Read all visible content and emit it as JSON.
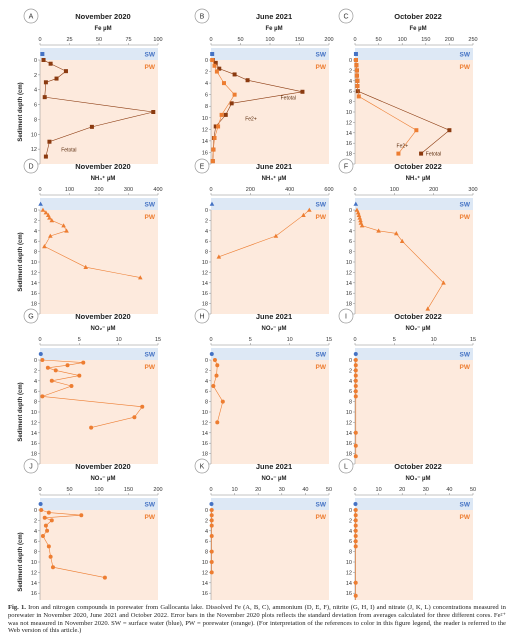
{
  "figure": {
    "caption_label": "Fig. 1.",
    "caption_text": "Iron and nitrogen compounds in porewater from Gallocanta lake. Dissolved Fe (A, B, C), ammonium (D, E, F), nitrite (G, H, I) and nitrate (J, K, L) concentrations measured in porewater in November 2020, June 2021 and October 2022. Error bars in the November 2020 plots reflects the standard deviation from averages calculated for three different cores. Fe²⁺ was not measured in November 2020. SW = surface water (blue), PW = porewater (orange). (For interpretation of the references to color in this figure legend, the reader is referred to the Web version of this article.)"
  },
  "colors": {
    "sw_band": "#dde8f5",
    "pw_band": "#fdeadd",
    "sw_text": "#4472c4",
    "pw_text": "#ed7d31",
    "fe_total": "#8b3a0f",
    "fe2": "#ed7d31",
    "nitrogen": "#ed7d31",
    "sw_point": "#4472c4"
  },
  "chart_data": [
    {
      "id": "A",
      "type": "line",
      "title": "November 2020",
      "xlabel": "Fe µM",
      "ylabel": "Sediment depth (cm)",
      "xlim": [
        0,
        100
      ],
      "xticks": [
        0,
        25,
        50,
        75,
        100
      ],
      "ylim": [
        0,
        14
      ],
      "yticks": [
        0,
        2,
        4,
        6,
        8,
        10,
        12,
        14
      ],
      "band_sw": "SW",
      "band_pw": "PW",
      "sw_point": {
        "x": 2,
        "label": "SW"
      },
      "series": [
        {
          "name": "Fe_total",
          "marker": "square",
          "color_key": "fe_total",
          "x": [
            3,
            9,
            22,
            14,
            5,
            4,
            96,
            44,
            8,
            5
          ],
          "y": [
            0,
            0.5,
            1.5,
            2.5,
            3,
            5,
            7,
            9,
            11,
            13
          ]
        }
      ],
      "annotations": [
        {
          "text": "Fetotal",
          "x": 18,
          "y": 12.3
        }
      ]
    },
    {
      "id": "B",
      "type": "line",
      "title": "June 2021",
      "xlabel": "Fe µM",
      "ylabel": "",
      "xlim": [
        0,
        200
      ],
      "xticks": [
        0,
        50,
        100,
        150,
        200
      ],
      "ylim": [
        0,
        18
      ],
      "yticks": [
        0,
        2,
        4,
        6,
        8,
        10,
        12,
        14,
        16,
        18
      ],
      "band_sw": "SW",
      "band_pw": "PW",
      "sw_point": {
        "x": 2,
        "label": "SW"
      },
      "series": [
        {
          "name": "Fe_total",
          "marker": "square",
          "color_key": "fe_total",
          "x": [
            3,
            8,
            14,
            40,
            62,
            155,
            35,
            25,
            8,
            5,
            4,
            3
          ],
          "y": [
            0,
            0.5,
            1.5,
            2.5,
            3.5,
            5.5,
            7.5,
            9.5,
            11.5,
            13.5,
            15.5,
            17.5
          ]
        },
        {
          "name": "Fe2+",
          "marker": "square",
          "color_key": "fe2",
          "x": [
            2,
            6,
            10,
            22,
            40,
            18,
            12,
            6,
            4,
            3
          ],
          "y": [
            0,
            1,
            2,
            4,
            6,
            9.5,
            11.5,
            13.5,
            15.5,
            17.5
          ]
        }
      ],
      "annotations": [
        {
          "text": "Fetotal",
          "x": 118,
          "y": 6.8
        },
        {
          "text": "Fe2+",
          "x": 58,
          "y": 10.5
        }
      ]
    },
    {
      "id": "C",
      "type": "line",
      "title": "October 2022",
      "xlabel": "Fe µM",
      "ylabel": "",
      "xlim": [
        0,
        250
      ],
      "xticks": [
        0,
        50,
        100,
        150,
        200,
        250
      ],
      "ylim": [
        0,
        20
      ],
      "yticks": [
        0,
        2,
        4,
        6,
        8,
        10,
        12,
        14,
        16,
        18,
        20
      ],
      "band_sw": "SW",
      "band_pw": "PW",
      "sw_point": {
        "x": 2,
        "label": "SW"
      },
      "series": [
        {
          "name": "Fe_total",
          "marker": "square",
          "color_key": "fe_total",
          "x": [
            2,
            3,
            4,
            4,
            5,
            5,
            6,
            200,
            140
          ],
          "y": [
            0,
            1,
            2,
            3,
            4,
            5,
            6,
            13.5,
            18
          ]
        },
        {
          "name": "Fe2+",
          "marker": "square",
          "color_key": "fe2",
          "x": [
            2,
            3,
            4,
            4,
            5,
            5,
            8,
            130,
            92
          ],
          "y": [
            0,
            1,
            2,
            3,
            4,
            5,
            7,
            13.5,
            18
          ]
        }
      ],
      "annotations": [
        {
          "text": "Fe2+",
          "x": 88,
          "y": 16.8
        },
        {
          "text": "Fetotal",
          "x": 150,
          "y": 18.4
        }
      ]
    },
    {
      "id": "D",
      "type": "line",
      "title": "November 2020",
      "xlabel": "NH₄⁺ µM",
      "ylabel": "Sediment depth (cm)",
      "xlim": [
        0,
        400
      ],
      "xticks": [
        0,
        100,
        200,
        300,
        400
      ],
      "ylim": [
        0,
        20
      ],
      "yticks": [
        0,
        2,
        4,
        6,
        8,
        10,
        12,
        14,
        16,
        18,
        20
      ],
      "band_sw": "SW",
      "band_pw": "PW",
      "sw_point": {
        "x": 2,
        "label": "SW"
      },
      "series": [
        {
          "name": "NH4+",
          "marker": "triangle",
          "color_key": "nitrogen",
          "x": [
            10,
            20,
            28,
            32,
            40,
            80,
            90,
            35,
            15,
            155,
            340
          ],
          "y": [
            0,
            0.5,
            1,
            1.5,
            2,
            3,
            4,
            5,
            7,
            11,
            13
          ]
        }
      ],
      "annotations": []
    },
    {
      "id": "E",
      "type": "line",
      "title": "June 2021",
      "xlabel": "NH₄⁺ µM",
      "ylabel": "",
      "xlim": [
        0,
        600
      ],
      "xticks": [
        0,
        200,
        400,
        600
      ],
      "ylim": [
        0,
        20
      ],
      "yticks": [
        0,
        2,
        4,
        6,
        8,
        10,
        12,
        14,
        16,
        18,
        20
      ],
      "band_sw": "SW",
      "band_pw": "PW",
      "sw_point": {
        "x": 5,
        "label": "SW"
      },
      "series": [
        {
          "name": "NH4+",
          "marker": "triangle",
          "color_key": "nitrogen",
          "x": [
            500,
            470,
            330,
            40
          ],
          "y": [
            0,
            1,
            5,
            9
          ]
        }
      ],
      "annotations": []
    },
    {
      "id": "F",
      "type": "line",
      "title": "October 2022",
      "xlabel": "NH₄⁺ µM",
      "ylabel": "",
      "xlim": [
        0,
        300
      ],
      "xticks": [
        0,
        100,
        200,
        300
      ],
      "ylim": [
        0,
        20
      ],
      "yticks": [
        0,
        2,
        4,
        6,
        8,
        10,
        12,
        14,
        16,
        18,
        20
      ],
      "band_sw": "SW",
      "band_pw": "PW",
      "sw_point": {
        "x": 2,
        "label": "SW"
      },
      "series": [
        {
          "name": "NH4+",
          "marker": "triangle",
          "color_key": "nitrogen",
          "x": [
            5,
            8,
            10,
            12,
            14,
            15,
            18,
            60,
            105,
            120,
            225,
            185
          ],
          "y": [
            0,
            0.5,
            1,
            1.5,
            2,
            2.5,
            3,
            4,
            4.5,
            6,
            14,
            19
          ]
        }
      ],
      "annotations": []
    },
    {
      "id": "G",
      "type": "line",
      "title": "November 2020",
      "xlabel": "NO₂⁻ µM",
      "ylabel": "Sediment depth (cm)",
      "xlim": [
        0,
        15
      ],
      "xticks": [
        0,
        5,
        10,
        15
      ],
      "ylim": [
        0,
        20
      ],
      "yticks": [
        0,
        2,
        4,
        6,
        8,
        10,
        12,
        14,
        16,
        18,
        20
      ],
      "band_sw": "SW",
      "band_pw": "PW",
      "sw_point": {
        "x": 0.1,
        "label": "SW"
      },
      "series": [
        {
          "name": "NO2-",
          "marker": "circle",
          "color_key": "nitrogen",
          "x": [
            0.3,
            5.5,
            3.5,
            1,
            2,
            5,
            1.5,
            4,
            0.3,
            13,
            12,
            6.5
          ],
          "y": [
            0,
            0.5,
            1,
            1.5,
            2,
            3,
            4,
            5,
            7,
            9,
            11,
            13
          ]
        }
      ],
      "annotations": []
    },
    {
      "id": "H",
      "type": "line",
      "title": "June 2021",
      "xlabel": "NO₂⁻ µM",
      "ylabel": "",
      "xlim": [
        0,
        15
      ],
      "xticks": [
        0,
        5,
        10,
        15
      ],
      "ylim": [
        0,
        20
      ],
      "yticks": [
        0,
        2,
        4,
        6,
        8,
        10,
        12,
        14,
        16,
        18,
        20
      ],
      "band_sw": "SW",
      "band_pw": "PW",
      "sw_point": {
        "x": 0.1,
        "label": "SW"
      },
      "series": [
        {
          "name": "NO2-",
          "marker": "circle",
          "color_key": "nitrogen",
          "x": [
            0.5,
            0.8,
            0.7,
            0.3,
            1.5,
            0.8
          ],
          "y": [
            0,
            1,
            3,
            5,
            8,
            12
          ]
        }
      ],
      "annotations": []
    },
    {
      "id": "I",
      "type": "line",
      "title": "October 2022",
      "xlabel": "NO₂⁻ µM",
      "ylabel": "",
      "xlim": [
        0,
        15
      ],
      "xticks": [
        0,
        5,
        10,
        15
      ],
      "ylim": [
        0,
        20
      ],
      "yticks": [
        0,
        2,
        4,
        6,
        8,
        10,
        12,
        14,
        16,
        18,
        20
      ],
      "band_sw": "SW",
      "band_pw": "PW",
      "sw_point": {
        "x": 0.1,
        "label": "SW"
      },
      "series": [
        {
          "name": "NO2-",
          "marker": "circle",
          "color_key": "nitrogen",
          "x": [
            0.1,
            0.1,
            0.1,
            0.1,
            0.1,
            0.1,
            0.1,
            0.1,
            0.1,
            0.1,
            0.1
          ],
          "y": [
            0,
            1,
            2,
            3,
            4,
            5,
            6,
            7,
            14,
            16.5,
            18.5
          ]
        }
      ],
      "annotations": []
    },
    {
      "id": "J",
      "type": "line",
      "title": "November 2020",
      "xlabel": "NO₃⁻ µM",
      "ylabel": "Sediment depth (cm)",
      "xlim": [
        0,
        200
      ],
      "xticks": [
        0,
        50,
        100,
        150,
        200
      ],
      "ylim": [
        0,
        20
      ],
      "yticks": [
        0,
        2,
        4,
        6,
        8,
        10,
        12,
        14,
        16,
        18,
        20
      ],
      "band_sw": "SW",
      "band_pw": "PW",
      "sw_point": {
        "x": 1,
        "label": "SW"
      },
      "series": [
        {
          "name": "NO3-",
          "marker": "circle",
          "color_key": "nitrogen",
          "x": [
            2,
            15,
            70,
            8,
            20,
            10,
            12,
            5,
            15,
            18,
            22,
            110
          ],
          "y": [
            0,
            0.5,
            1,
            1.5,
            2,
            3,
            4,
            5,
            7,
            9,
            11,
            13
          ]
        }
      ],
      "annotations": []
    },
    {
      "id": "K",
      "type": "line",
      "title": "June 2021",
      "xlabel": "NO₃⁻ µM",
      "ylabel": "",
      "xlim": [
        0,
        50
      ],
      "xticks": [
        0,
        10,
        20,
        30,
        40,
        50
      ],
      "ylim": [
        0,
        20
      ],
      "yticks": [
        0,
        2,
        4,
        6,
        8,
        10,
        12,
        14,
        16,
        18,
        20
      ],
      "band_sw": "SW",
      "band_pw": "PW",
      "sw_point": {
        "x": 0.2,
        "label": "SW"
      },
      "series": [
        {
          "name": "NO3-",
          "marker": "circle",
          "color_key": "nitrogen",
          "x": [
            0.3,
            0.3,
            0.3,
            0.3,
            0.3,
            0.3,
            0.3,
            0.3
          ],
          "y": [
            0,
            1,
            2,
            3,
            5,
            8,
            10,
            12
          ]
        }
      ],
      "annotations": []
    },
    {
      "id": "L",
      "type": "line",
      "title": "October 2022",
      "xlabel": "NO₃⁻ µM",
      "ylabel": "",
      "xlim": [
        0,
        50
      ],
      "xticks": [
        0,
        10,
        20,
        30,
        40,
        50
      ],
      "ylim": [
        0,
        20
      ],
      "yticks": [
        0,
        2,
        4,
        6,
        8,
        10,
        12,
        14,
        16,
        18,
        20
      ],
      "band_sw": "SW",
      "band_pw": "PW",
      "sw_point": {
        "x": 0.2,
        "label": "SW"
      },
      "series": [
        {
          "name": "NO3-",
          "marker": "circle",
          "color_key": "nitrogen",
          "x": [
            0.3,
            0.3,
            0.3,
            0.3,
            0.3,
            0.3,
            0.3,
            0.3,
            0.3,
            0.3,
            0.3
          ],
          "y": [
            0,
            1,
            2,
            3,
            4,
            5,
            6,
            7,
            14,
            16.5,
            18.5
          ]
        }
      ],
      "annotations": []
    }
  ]
}
